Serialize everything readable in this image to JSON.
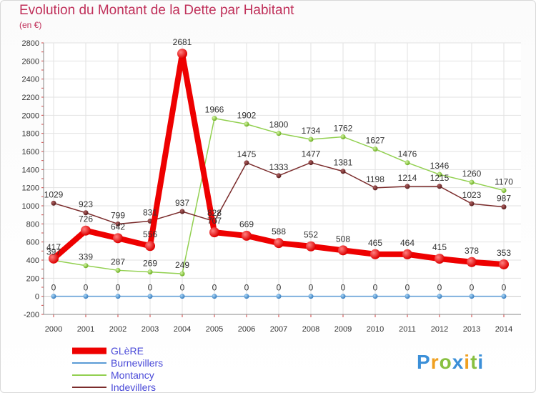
{
  "title": "Evolution du Montant de la Dette par Habitant",
  "unit": "(en €)",
  "logo": "Proxiti",
  "chart_data": {
    "type": "line",
    "title": "Evolution du Montant de la Dette par Habitant",
    "ylabel": "(en €)",
    "xlabel": "",
    "ylim": [
      -200,
      2800
    ],
    "yticks": [
      -200,
      0,
      200,
      400,
      600,
      800,
      1000,
      1200,
      1400,
      1600,
      1800,
      2000,
      2200,
      2400,
      2600,
      2800
    ],
    "categories": [
      "2000",
      "2001",
      "2002",
      "2003",
      "2004",
      "2005",
      "2006",
      "2007",
      "2008",
      "2009",
      "2010",
      "2011",
      "2012",
      "2013",
      "2014"
    ],
    "grid": true,
    "legend_position": "bottom-left",
    "series": [
      {
        "name": "GLèRE",
        "color": "#ee0000",
        "values": [
          417,
          726,
          642,
          556,
          2681,
          707,
          669,
          588,
          552,
          508,
          465,
          464,
          415,
          378,
          353
        ],
        "labels": [
          "417",
          "726",
          "642",
          "556",
          "2681",
          "707",
          "669",
          "588",
          "552",
          "508",
          "465",
          "464",
          "415",
          "378",
          "353"
        ]
      },
      {
        "name": "Burnevillers",
        "color": "#5b9bd5",
        "values": [
          0,
          0,
          0,
          0,
          0,
          0,
          0,
          0,
          0,
          0,
          0,
          0,
          0,
          0,
          0
        ],
        "labels": [
          "0",
          "0",
          "0",
          "0",
          "0",
          "0",
          "0",
          "0",
          "0",
          "0",
          "0",
          "0",
          "0",
          "0",
          "0"
        ]
      },
      {
        "name": "Montancy",
        "color": "#92d050",
        "values": [
          397,
          339,
          287,
          269,
          249,
          1966,
          1902,
          1800,
          1734,
          1762,
          1627,
          1476,
          1346,
          1260,
          1170
        ],
        "labels": [
          "397",
          "339",
          "287",
          "269",
          "249",
          "1966",
          "1902",
          "1800",
          "1734",
          "1762",
          "1627",
          "1476",
          "1346",
          "1260",
          "1170"
        ]
      },
      {
        "name": "Indevillers",
        "color": "#7b2c2c",
        "values": [
          1029,
          923,
          799,
          831,
          937,
          828,
          1475,
          1333,
          1477,
          1381,
          1198,
          1214,
          1215,
          1023,
          987
        ],
        "labels": [
          "1029",
          "923",
          "799",
          "831",
          "937",
          "828",
          "1475",
          "1333",
          "1477",
          "1381",
          "1198",
          "1214",
          "1215",
          "1023",
          "987"
        ]
      }
    ]
  }
}
